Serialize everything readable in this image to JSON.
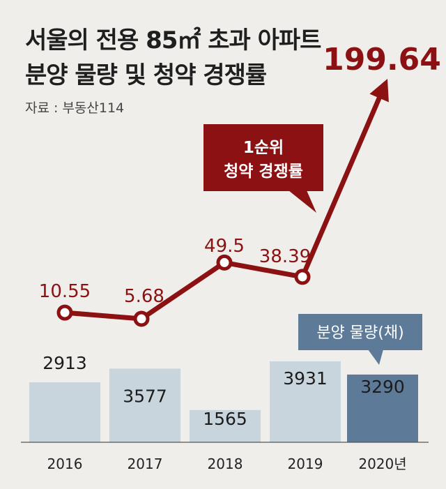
{
  "header": {
    "title_line1": "서울의 전용 85㎡ 초과 아파트",
    "title_line2": "분양 물량 및 청약 경쟁률",
    "source": "자료 : 부동산114"
  },
  "callouts": {
    "rate_line1": "1순위",
    "rate_line2": "청약 경쟁률",
    "supply": "분양 물량(채)"
  },
  "colors": {
    "line": "#8b1113",
    "bar": "#c9d5dd",
    "bar_highlight": "#5d7b98",
    "supply_callout": "#5d7b98",
    "background": "#efeeea"
  },
  "chart_data": {
    "type": "bar+line",
    "categories": [
      "2016",
      "2017",
      "2018",
      "2019",
      "2020년"
    ],
    "series": [
      {
        "name": "분양 물량(채)",
        "type": "bar",
        "values": [
          2913,
          3577,
          1565,
          3931,
          3290
        ],
        "labels": [
          "2913",
          "3577",
          "1565",
          "3931",
          "3290"
        ]
      },
      {
        "name": "1순위 청약 경쟁률",
        "type": "line",
        "values": [
          10.55,
          5.68,
          49.5,
          38.39,
          199.64
        ],
        "labels": [
          "10.55",
          "5.68",
          "49.5",
          "38.39",
          "199.64"
        ]
      }
    ],
    "highlight_index": 4
  }
}
